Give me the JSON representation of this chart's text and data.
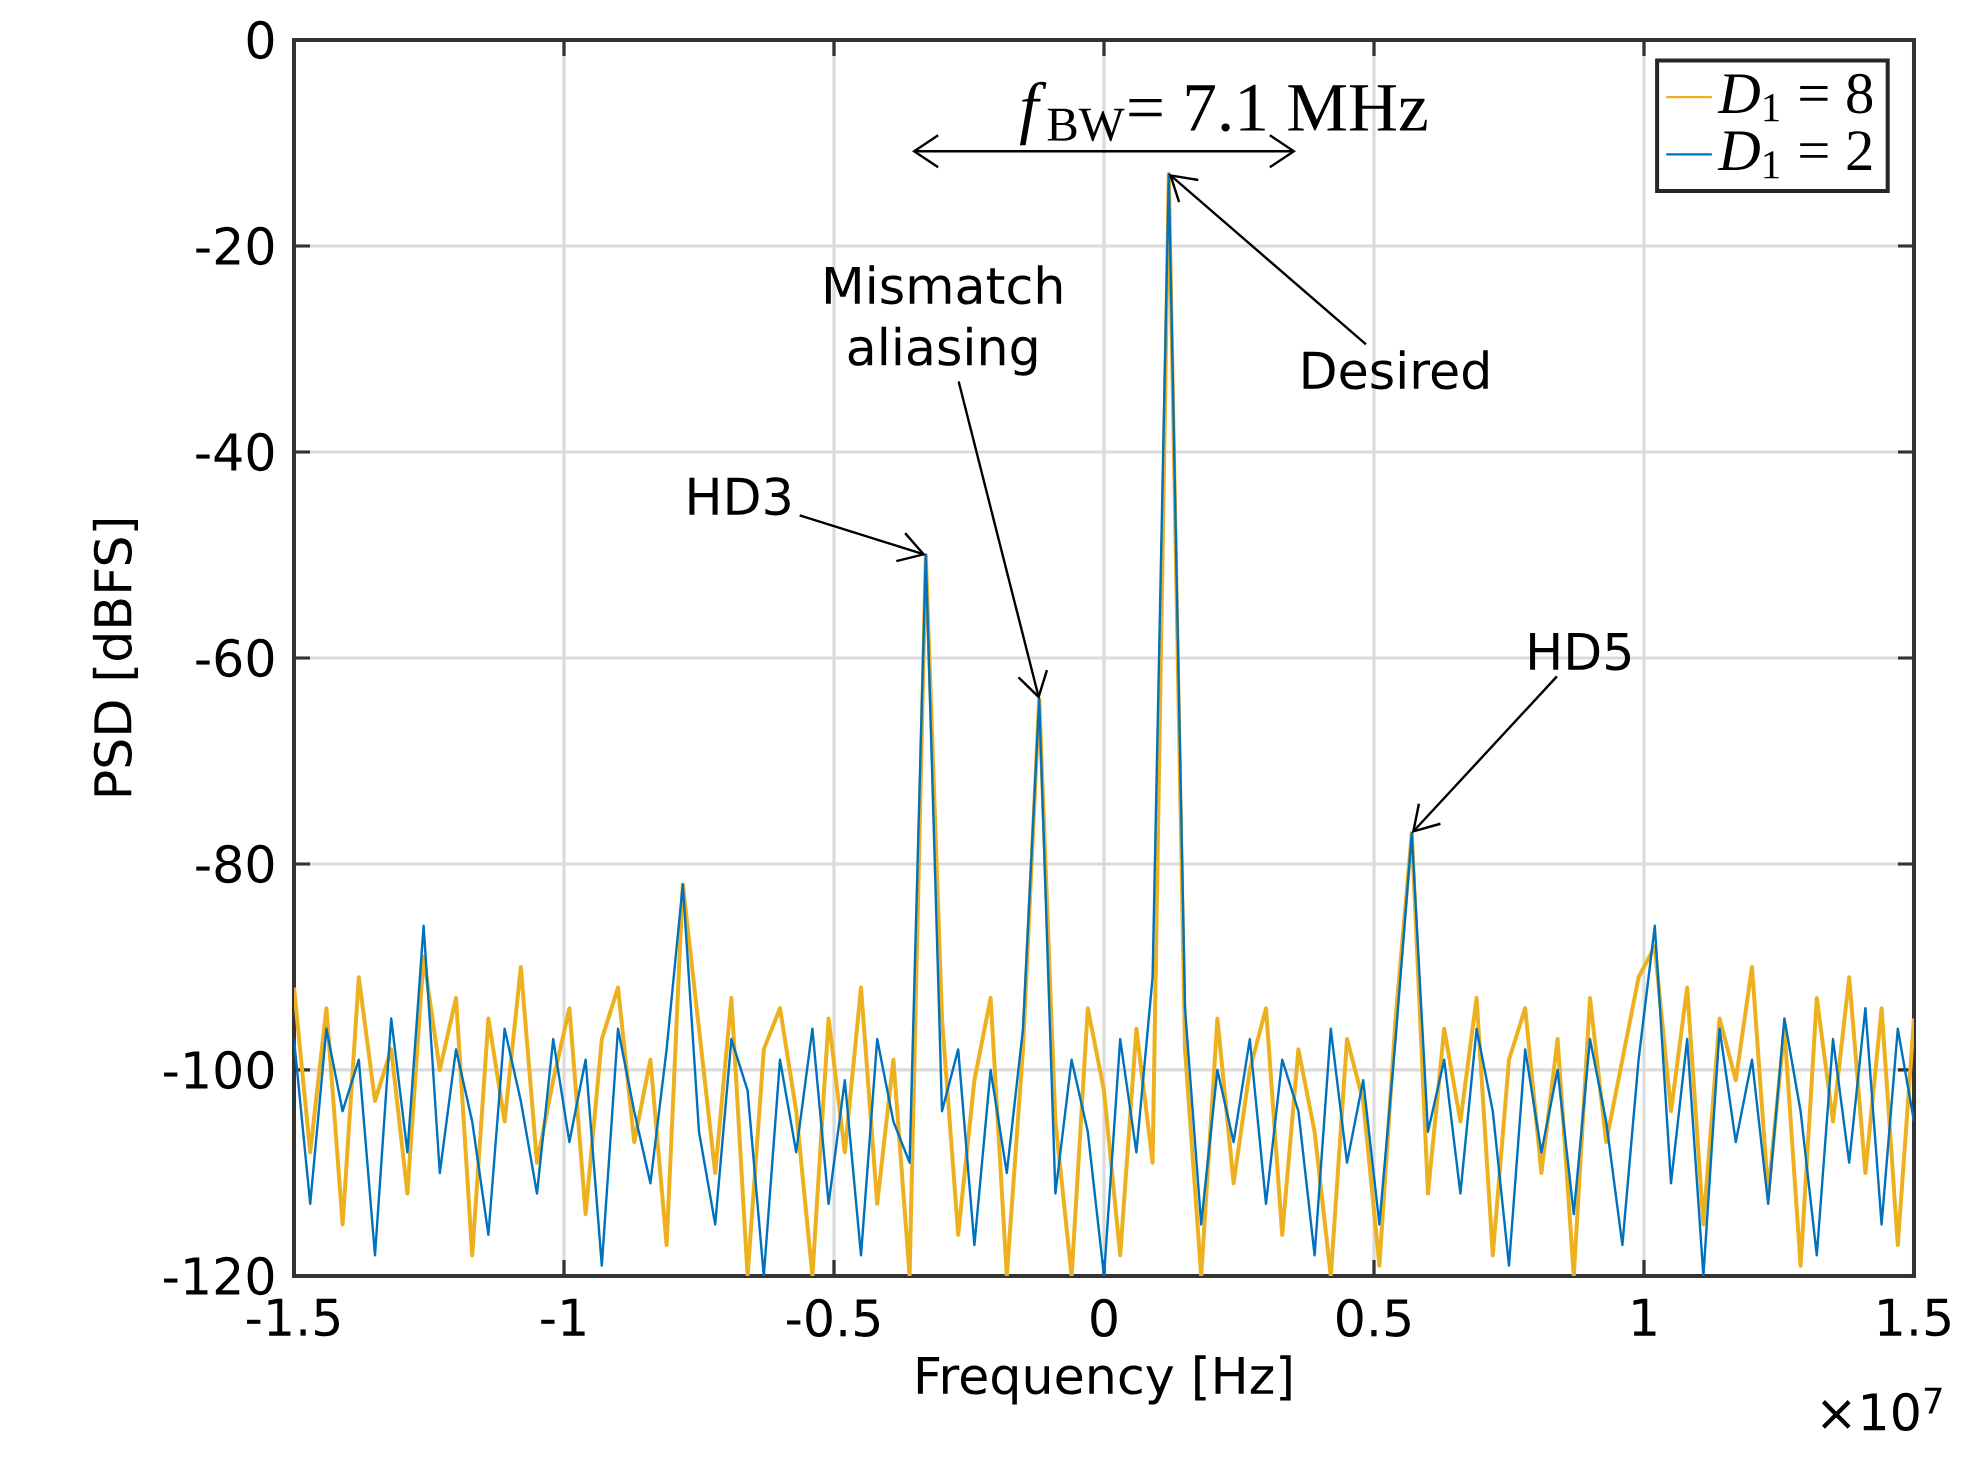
{
  "chart_data": {
    "type": "line",
    "xlabel": "Frequency [Hz]",
    "ylabel": "PSD [dBFS]",
    "x": [
      -1.5,
      -1.47,
      -1.44,
      -1.41,
      -1.38,
      -1.35,
      -1.32,
      -1.29,
      -1.26,
      -1.23,
      -1.2,
      -1.17,
      -1.14,
      -1.11,
      -1.08,
      -1.05,
      -1.02,
      -0.99,
      -0.96,
      -0.93,
      -0.9,
      -0.87,
      -0.84,
      -0.81,
      -0.78,
      -0.75,
      -0.72,
      -0.69,
      -0.66,
      -0.63,
      -0.6,
      -0.57,
      -0.54,
      -0.51,
      -0.48,
      -0.45,
      -0.42,
      -0.39,
      -0.36,
      -0.33,
      -0.3,
      -0.27,
      -0.24,
      -0.21,
      -0.18,
      -0.15,
      -0.12,
      -0.09,
      -0.06,
      -0.03,
      0,
      0.03,
      0.06,
      0.09,
      0.12,
      0.15,
      0.18,
      0.21,
      0.24,
      0.27,
      0.3,
      0.33,
      0.36,
      0.39,
      0.42,
      0.45,
      0.48,
      0.51,
      0.54,
      0.57,
      0.6,
      0.63,
      0.66,
      0.69,
      0.72,
      0.75,
      0.78,
      0.81,
      0.84,
      0.87,
      0.9,
      0.93,
      0.96,
      0.99,
      1.02,
      1.05,
      1.08,
      1.11,
      1.14,
      1.17,
      1.2,
      1.23,
      1.26,
      1.29,
      1.32,
      1.35,
      1.38,
      1.41,
      1.44,
      1.47,
      1.5
    ],
    "series": [
      {
        "name": "*D*$_{1}$ = 8",
        "color": "#edb120",
        "values": [
          -92,
          -108,
          -94,
          -115,
          -91,
          -103,
          -98,
          -112,
          -89,
          -100,
          -93,
          -118,
          -95,
          -105,
          -90,
          -109,
          -101,
          -94,
          -114,
          -97,
          -92,
          -107,
          -99,
          -117,
          -82,
          -96,
          -110,
          -93,
          -120,
          -98,
          -94,
          -104,
          -120,
          -95,
          -108,
          -92,
          -113,
          -99,
          -120,
          -50,
          -95,
          -116,
          -101,
          -93,
          -120,
          -98,
          -64,
          -105,
          -120,
          -94,
          -102,
          -118,
          -96,
          -109,
          -13,
          -98,
          -120,
          -95,
          -111,
          -100,
          -94,
          -116,
          -98,
          -106,
          -120,
          -97,
          -103,
          -119,
          -95,
          -77,
          -112,
          -96,
          -105,
          -93,
          -118,
          -99,
          -94,
          -110,
          -97,
          -120,
          -93,
          -107,
          -99,
          -91,
          -88,
          -104,
          -92,
          -115,
          -95,
          -101,
          -90,
          -112,
          -96,
          -119,
          -93,
          -105,
          -91,
          -110,
          -94,
          -117,
          -95
        ]
      },
      {
        "name": "*D*$_{1}$ = 2",
        "color": "#0072bd",
        "values": [
          -97,
          -113,
          -96,
          -104,
          -99,
          -118,
          -95,
          -108,
          -86,
          -110,
          -98,
          -105,
          -116,
          -96,
          -103,
          -112,
          -97,
          -107,
          -99,
          -119,
          -96,
          -104,
          -111,
          -98,
          -82,
          -106,
          -115,
          -97,
          -102,
          -120,
          -99,
          -108,
          -96,
          -113,
          -101,
          -118,
          -97,
          -105,
          -109,
          -50,
          -104,
          -98,
          -117,
          -100,
          -110,
          -96,
          -64,
          -112,
          -99,
          -106,
          -120,
          -97,
          -108,
          -91,
          -13,
          -94,
          -115,
          -100,
          -107,
          -97,
          -113,
          -99,
          -104,
          -118,
          -96,
          -109,
          -101,
          -115,
          -97,
          -77,
          -106,
          -99,
          -112,
          -96,
          -104,
          -119,
          -98,
          -108,
          -100,
          -114,
          -97,
          -105,
          -117,
          -99,
          -86,
          -111,
          -97,
          -120,
          -96,
          -107,
          -99,
          -113,
          -95,
          -104,
          -118,
          -97,
          -109,
          -94,
          -115,
          -96,
          -105
        ]
      }
    ],
    "xlim": [
      -1.5,
      1.5
    ],
    "xticks": [
      -1.5,
      -1,
      -0.5,
      0,
      0.5,
      1,
      1.5
    ],
    "ylim": [
      -120,
      0
    ],
    "yticks": [
      -120,
      -100,
      -80,
      -60,
      -40,
      -20,
      0
    ],
    "grid": true,
    "legend": "top right",
    "annotations": [
      "*f*$_{BW}$= 7.1 MHz",
      {
        "text": "HD3",
        "x": -0.33,
        "y": -50
      },
      {
        "text": "Mismatch aliasing",
        "x": -0.12,
        "y": -64
      },
      {
        "text": "Desired",
        "x": 0.12,
        "y": -13
      },
      {
        "text": "HD5",
        "x": 0.57,
        "y": -77
      },
      "×10$^{7}$"
    ]
  }
}
